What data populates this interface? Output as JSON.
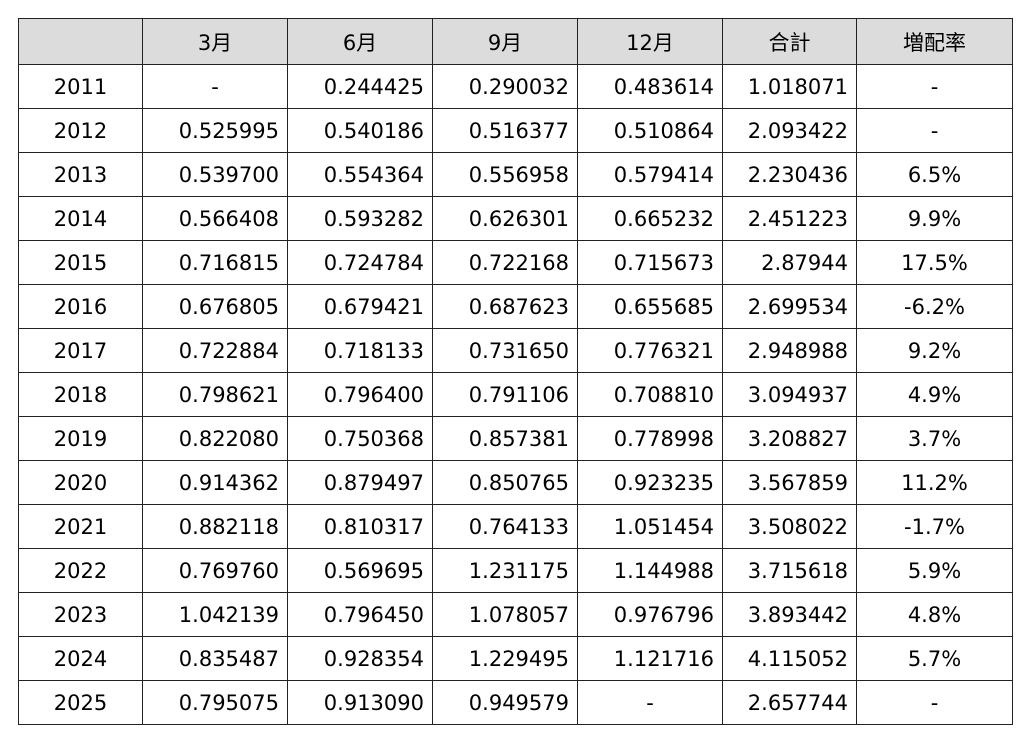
{
  "table": {
    "headers": [
      "",
      "3月",
      "6月",
      "9月",
      "12月",
      "合計",
      "増配率"
    ],
    "rows": [
      {
        "year": "2011",
        "m3": "-",
        "m6": "0.244425",
        "m9": "0.290032",
        "m12": "0.483614",
        "total": "1.018071",
        "growth": "-"
      },
      {
        "year": "2012",
        "m3": "0.525995",
        "m6": "0.540186",
        "m9": "0.516377",
        "m12": "0.510864",
        "total": "2.093422",
        "growth": "-"
      },
      {
        "year": "2013",
        "m3": "0.539700",
        "m6": "0.554364",
        "m9": "0.556958",
        "m12": "0.579414",
        "total": "2.230436",
        "growth": "6.5%"
      },
      {
        "year": "2014",
        "m3": "0.566408",
        "m6": "0.593282",
        "m9": "0.626301",
        "m12": "0.665232",
        "total": "2.451223",
        "growth": "9.9%"
      },
      {
        "year": "2015",
        "m3": "0.716815",
        "m6": "0.724784",
        "m9": "0.722168",
        "m12": "0.715673",
        "total": "2.87944",
        "growth": "17.5%"
      },
      {
        "year": "2016",
        "m3": "0.676805",
        "m6": "0.679421",
        "m9": "0.687623",
        "m12": "0.655685",
        "total": "2.699534",
        "growth": "-6.2%"
      },
      {
        "year": "2017",
        "m3": "0.722884",
        "m6": "0.718133",
        "m9": "0.731650",
        "m12": "0.776321",
        "total": "2.948988",
        "growth": "9.2%"
      },
      {
        "year": "2018",
        "m3": "0.798621",
        "m6": "0.796400",
        "m9": "0.791106",
        "m12": "0.708810",
        "total": "3.094937",
        "growth": "4.9%"
      },
      {
        "year": "2019",
        "m3": "0.822080",
        "m6": "0.750368",
        "m9": "0.857381",
        "m12": "0.778998",
        "total": "3.208827",
        "growth": "3.7%"
      },
      {
        "year": "2020",
        "m3": "0.914362",
        "m6": "0.879497",
        "m9": "0.850765",
        "m12": "0.923235",
        "total": "3.567859",
        "growth": "11.2%"
      },
      {
        "year": "2021",
        "m3": "0.882118",
        "m6": "0.810317",
        "m9": "0.764133",
        "m12": "1.051454",
        "total": "3.508022",
        "growth": "-1.7%"
      },
      {
        "year": "2022",
        "m3": "0.769760",
        "m6": "0.569695",
        "m9": "1.231175",
        "m12": "1.144988",
        "total": "3.715618",
        "growth": "5.9%"
      },
      {
        "year": "2023",
        "m3": "1.042139",
        "m6": "0.796450",
        "m9": "1.078057",
        "m12": "0.976796",
        "total": "3.893442",
        "growth": "4.8%"
      },
      {
        "year": "2024",
        "m3": "0.835487",
        "m6": "0.928354",
        "m9": "1.229495",
        "m12": "1.121716",
        "total": "4.115052",
        "growth": "5.7%"
      },
      {
        "year": "2025",
        "m3": "0.795075",
        "m6": "0.913090",
        "m9": "0.949579",
        "m12": "-",
        "total": "2.657744",
        "growth": "-"
      }
    ]
  }
}
